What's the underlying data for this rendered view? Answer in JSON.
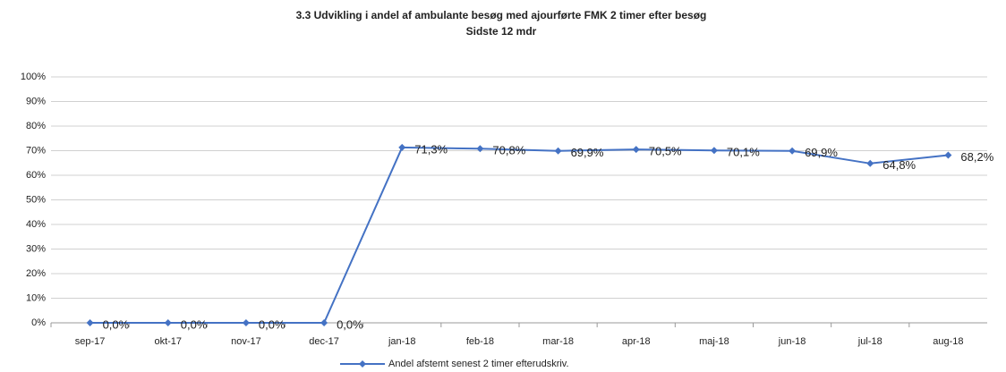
{
  "chart_data": {
    "type": "line",
    "title": "3.3 Udvikling i andel af ambulante besøg med ajourførte FMK 2 timer efter besøg",
    "subtitle": "Sidste 12 mdr",
    "categories": [
      "sep-17",
      "okt-17",
      "nov-17",
      "dec-17",
      "jan-18",
      "feb-18",
      "mar-18",
      "apr-18",
      "maj-18",
      "jun-18",
      "jul-18",
      "aug-18"
    ],
    "series": [
      {
        "name": "Andel afstemt senest 2 timer efterudskriv.",
        "color": "#4472c4",
        "values": [
          0,
          0,
          0,
          0,
          71.3,
          70.8,
          69.9,
          70.5,
          70.1,
          69.9,
          64.8,
          68.2
        ],
        "value_labels": [
          "0,0%",
          "0,0%",
          "0,0%",
          "0,0%",
          "71,3%",
          "70,8%",
          "69,9%",
          "70,5%",
          "70,1%",
          "69,9%",
          "64,8%",
          "68,2%"
        ]
      }
    ],
    "ylim": [
      0,
      100
    ],
    "yticks": [
      {
        "value": 0,
        "label": "0%"
      },
      {
        "value": 10,
        "label": "10%"
      },
      {
        "value": 20,
        "label": "20%"
      },
      {
        "value": 30,
        "label": "30%"
      },
      {
        "value": 40,
        "label": "40%"
      },
      {
        "value": 50,
        "label": "50%"
      },
      {
        "value": 60,
        "label": "60%"
      },
      {
        "value": 70,
        "label": "70%"
      },
      {
        "value": 80,
        "label": "80%"
      },
      {
        "value": 90,
        "label": "90%"
      },
      {
        "value": 100,
        "label": "100%"
      }
    ],
    "grid": true,
    "legend": "bottom"
  }
}
